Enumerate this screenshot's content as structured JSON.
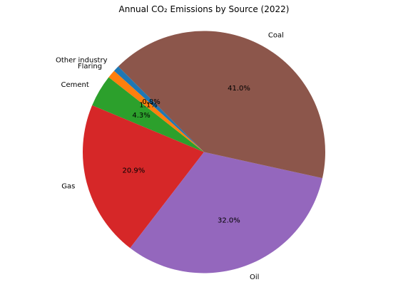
{
  "chart_data": {
    "type": "pie",
    "title": "Annual CO₂ Emissions by Source (2022)",
    "start_angle_deg": 135,
    "direction": "counterclockwise",
    "slices": [
      {
        "label": "Other industry",
        "value": 0.8,
        "pct_label": "0.8%",
        "color": "#1f77b4"
      },
      {
        "label": "Flaring",
        "value": 1.1,
        "pct_label": "1.1%",
        "color": "#ff7f0e"
      },
      {
        "label": "Cement",
        "value": 4.3,
        "pct_label": "4.3%",
        "color": "#2ca02c"
      },
      {
        "label": "Gas",
        "value": 20.9,
        "pct_label": "20.9%",
        "color": "#d62728"
      },
      {
        "label": "Oil",
        "value": 32.0,
        "pct_label": "32.0%",
        "color": "#9467bd"
      },
      {
        "label": "Coal",
        "value": 41.0,
        "pct_label": "41.0%",
        "color": "#8c564b"
      }
    ]
  }
}
